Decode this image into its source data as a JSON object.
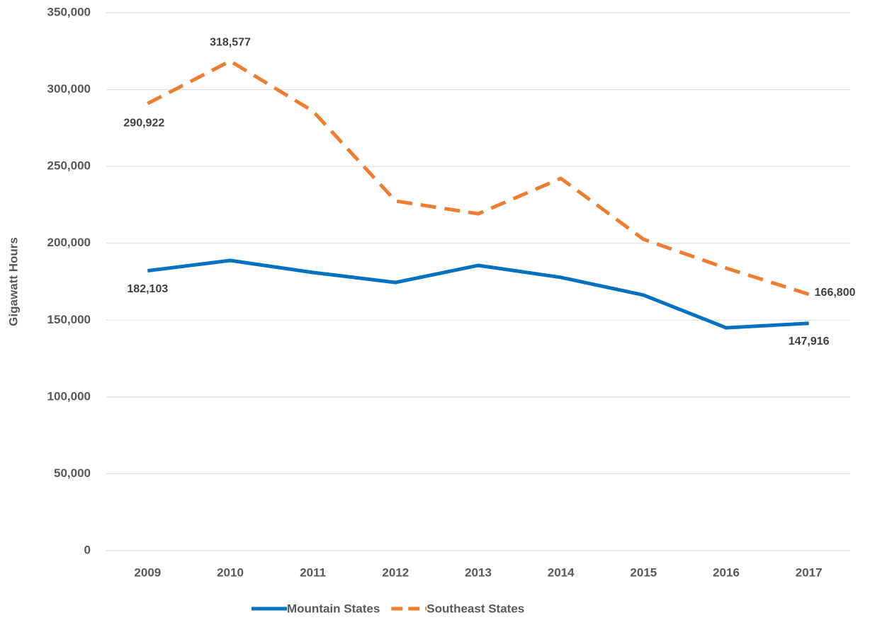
{
  "chart_data": {
    "type": "line",
    "y_label": "Gigawatt Hours",
    "categories": [
      "2009",
      "2010",
      "2011",
      "2012",
      "2013",
      "2014",
      "2015",
      "2016",
      "2017"
    ],
    "series": [
      {
        "name": "Mountain States",
        "color": "#0070c0",
        "dash": false,
        "values": [
          182103,
          188800,
          181000,
          174500,
          185600,
          177800,
          166300,
          145000,
          147916
        ],
        "value_labels": [
          "182,103",
          null,
          null,
          null,
          null,
          null,
          null,
          null,
          "147,916"
        ]
      },
      {
        "name": "Southeast States",
        "color": "#ed7d31",
        "dash": true,
        "values": [
          290922,
          318577,
          286000,
          227500,
          219200,
          242200,
          202600,
          183800,
          166800
        ],
        "value_labels": [
          "290,922",
          "318,577",
          null,
          null,
          null,
          null,
          null,
          null,
          "166,800"
        ]
      }
    ],
    "ylim": [
      0,
      350000
    ],
    "yticks": [
      {
        "value": 0,
        "label": "0"
      },
      {
        "value": 50000,
        "label": "50,000"
      },
      {
        "value": 100000,
        "label": "100,000"
      },
      {
        "value": 150000,
        "label": "150,000"
      },
      {
        "value": 200000,
        "label": "200,000"
      },
      {
        "value": 250000,
        "label": "250,000"
      },
      {
        "value": 300000,
        "label": "300,000"
      },
      {
        "value": 350000,
        "label": "350,000"
      }
    ],
    "grid": true,
    "legend": "bottom"
  }
}
